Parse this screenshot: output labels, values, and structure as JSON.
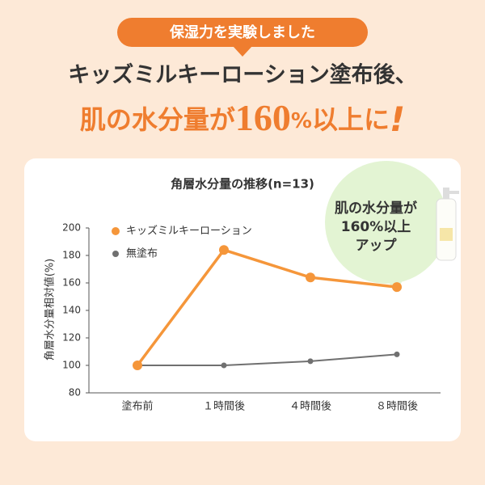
{
  "header": {
    "badge": "保湿力を実験しました",
    "line1": "キッズミルキーローション塗布後、",
    "line2": [
      "肌の水分量が",
      "160",
      "%",
      "以上に",
      "!"
    ]
  },
  "chart_data": {
    "type": "line",
    "title": "角層水分量の推移(n=13)",
    "y_label": "角層水分量相対値(%)",
    "categories": [
      "塗布前",
      "１時間後",
      "４時間後",
      "８時間後"
    ],
    "series": [
      {
        "name": "キッズミルキーローション",
        "color": "#f5963a",
        "values": [
          100,
          184,
          164,
          157
        ]
      },
      {
        "name": "無塗布",
        "color": "#707070",
        "values": [
          100,
          100,
          103,
          108
        ]
      }
    ],
    "ylim": [
      80,
      200
    ],
    "yticks": [
      80,
      100,
      120,
      140,
      160,
      180,
      200
    ],
    "grid": false,
    "annotation": [
      "肌の水分量が",
      "160%以上",
      "アップ"
    ]
  }
}
